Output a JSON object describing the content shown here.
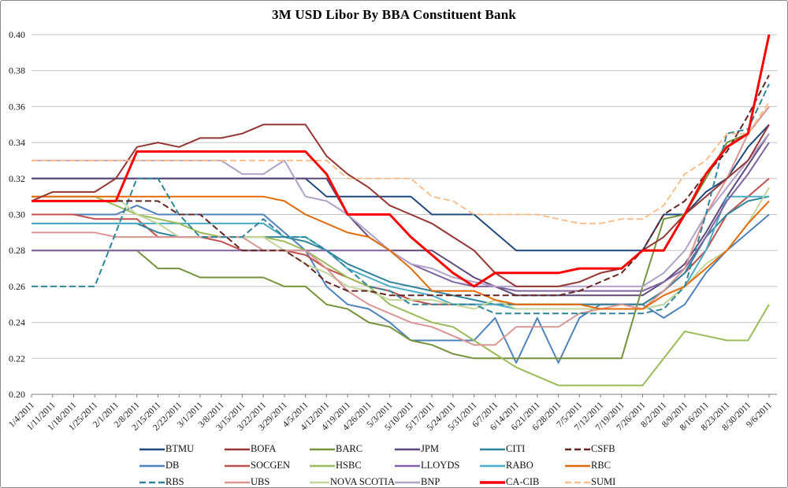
{
  "chart_data": {
    "type": "line",
    "title": "3M USD Libor By BBA Constituent Bank",
    "xlabel": "",
    "ylabel": "",
    "ylim": [
      0.2,
      0.4
    ],
    "y_tick_step": 0.02,
    "grid": true,
    "legend_position": "bottom",
    "y_tick_labels": [
      "0.20",
      "0.22",
      "0.24",
      "0.26",
      "0.28",
      "0.30",
      "0.32",
      "0.34",
      "0.36",
      "0.38",
      "0.40"
    ],
    "x_labels": [
      "1/4/2011",
      "1/11/2011",
      "1/18/2011",
      "1/25/2011",
      "2/1/2011",
      "2/8/2011",
      "2/15/2011",
      "2/22/2011",
      "3/1/2011",
      "3/8/2011",
      "3/15/2011",
      "3/22/2011",
      "3/29/2011",
      "4/5/2011",
      "4/12/2011",
      "4/19/2011",
      "4/26/2011",
      "5/3/2011",
      "5/10/2011",
      "5/17/2011",
      "5/24/2011",
      "5/31/2011",
      "6/7/2011",
      "6/14/2011",
      "6/21/2011",
      "6/28/2011",
      "7/5/2011",
      "7/12/2011",
      "7/19/2011",
      "7/26/2011",
      "8/2/2011",
      "8/9/2011",
      "8/16/2011",
      "8/23/2011",
      "8/30/2011",
      "9/6/2011"
    ],
    "legend_order": [
      "BTMU",
      "BOFA",
      "BARC",
      "JPM",
      "CITI",
      "CSFB",
      "DB",
      "SOCGEN",
      "HSBC",
      "LLOYDS",
      "RABO",
      "RBC",
      "RBS",
      "UBS",
      "NOVA SCOTIA",
      "BNP",
      "CA-CIB",
      "SUMI"
    ],
    "series": [
      {
        "name": "BTMU",
        "color": "#1F497D",
        "dash": false,
        "width": 2,
        "values": [
          0.32,
          0.32,
          0.32,
          0.32,
          0.32,
          0.32,
          0.32,
          0.32,
          0.32,
          0.32,
          0.32,
          0.32,
          0.32,
          0.32,
          0.31,
          0.31,
          0.31,
          0.31,
          0.31,
          0.3,
          0.3,
          0.3,
          0.29,
          0.28,
          0.28,
          0.28,
          0.28,
          0.28,
          0.28,
          0.28,
          0.3,
          0.3,
          0.3125,
          0.32,
          0.3375,
          0.35
        ]
      },
      {
        "name": "JPM",
        "color": "#5F497A",
        "dash": false,
        "width": 2,
        "values": [
          0.32,
          0.32,
          0.32,
          0.32,
          0.32,
          0.32,
          0.32,
          0.32,
          0.32,
          0.32,
          0.32,
          0.32,
          0.32,
          0.32,
          0.32,
          0.3,
          0.2875,
          0.28,
          0.28,
          0.28,
          0.2725,
          0.265,
          0.26,
          0.255,
          0.255,
          0.255,
          0.255,
          0.255,
          0.255,
          0.255,
          0.2625,
          0.2725,
          0.29,
          0.31,
          0.3275,
          0.345
        ]
      },
      {
        "name": "DB",
        "color": "#4F81BD",
        "dash": false,
        "width": 2,
        "values": [
          0.3,
          0.3,
          0.3,
          0.3,
          0.3,
          0.305,
          0.3,
          0.3,
          0.3,
          0.3,
          0.3,
          0.3,
          0.29,
          0.28,
          0.26,
          0.25,
          0.2475,
          0.24,
          0.23,
          0.23,
          0.23,
          0.23,
          0.2425,
          0.2175,
          0.2425,
          0.2175,
          0.2425,
          0.25,
          0.25,
          0.25,
          0.2425,
          0.25,
          0.2675,
          0.28,
          0.29,
          0.3
        ]
      },
      {
        "name": "SOCGEN",
        "color": "#C0504D",
        "dash": false,
        "width": 2,
        "values": [
          0.3,
          0.3,
          0.3,
          0.2975,
          0.2975,
          0.2975,
          0.2875,
          0.2875,
          0.2875,
          0.285,
          0.28,
          0.28,
          0.28,
          0.2775,
          0.27,
          0.265,
          0.26,
          0.2575,
          0.2525,
          0.25,
          0.25,
          0.25,
          0.25,
          0.25,
          0.25,
          0.25,
          0.25,
          0.25,
          0.25,
          0.25,
          0.2575,
          0.2675,
          0.28,
          0.3,
          0.31,
          0.32
        ]
      },
      {
        "name": "CITI",
        "color": "#31849B",
        "dash": false,
        "width": 2,
        "values": [
          0.295,
          0.295,
          0.295,
          0.295,
          0.295,
          0.295,
          0.29,
          0.2875,
          0.2875,
          0.2875,
          0.2875,
          0.2875,
          0.2875,
          0.285,
          0.28,
          0.2725,
          0.2675,
          0.2625,
          0.26,
          0.2575,
          0.255,
          0.2525,
          0.25,
          0.25,
          0.25,
          0.25,
          0.25,
          0.25,
          0.25,
          0.25,
          0.2575,
          0.2675,
          0.2875,
          0.3,
          0.3075,
          0.31
        ]
      },
      {
        "name": "RABO",
        "color": "#4BACC6",
        "dash": false,
        "width": 2,
        "values": [
          0.295,
          0.295,
          0.295,
          0.295,
          0.295,
          0.295,
          0.295,
          0.295,
          0.295,
          0.295,
          0.295,
          0.295,
          0.2875,
          0.2875,
          0.28,
          0.27,
          0.265,
          0.26,
          0.2575,
          0.255,
          0.25,
          0.25,
          0.25,
          0.2475,
          0.2475,
          0.2475,
          0.2475,
          0.2475,
          0.2475,
          0.2475,
          0.25,
          0.26,
          0.28,
          0.31,
          0.31,
          0.31
        ]
      },
      {
        "name": "BARC",
        "color": "#76923C",
        "dash": false,
        "width": 2,
        "values": [
          0.28,
          0.28,
          0.28,
          0.28,
          0.28,
          0.28,
          0.27,
          0.27,
          0.265,
          0.265,
          0.265,
          0.265,
          0.26,
          0.26,
          0.25,
          0.2475,
          0.24,
          0.2375,
          0.23,
          0.2275,
          0.2225,
          0.22,
          0.22,
          0.22,
          0.22,
          0.22,
          0.22,
          0.22,
          0.22,
          0.26,
          0.2975,
          0.3,
          0.32,
          0.34,
          0.345,
          0.36
        ]
      },
      {
        "name": "HSBC",
        "color": "#9BBB59",
        "dash": false,
        "width": 2,
        "values": [
          0.31,
          0.31,
          0.31,
          0.31,
          0.305,
          0.3,
          0.2975,
          0.295,
          0.29,
          0.2875,
          0.2875,
          0.2875,
          0.285,
          0.28,
          0.2725,
          0.265,
          0.26,
          0.25,
          0.245,
          0.24,
          0.2375,
          0.23,
          0.2225,
          0.215,
          0.21,
          0.205,
          0.205,
          0.205,
          0.205,
          0.205,
          0.22,
          0.235,
          0.2325,
          0.23,
          0.23,
          0.25
        ]
      },
      {
        "name": "NOVA SCOTIA",
        "color": "#C3D69B",
        "dash": false,
        "width": 2,
        "values": [
          0.31,
          0.31,
          0.31,
          0.31,
          0.31,
          0.3,
          0.295,
          0.2875,
          0.2875,
          0.2875,
          0.2875,
          0.2875,
          0.28,
          0.2725,
          0.2675,
          0.26,
          0.2575,
          0.2525,
          0.2525,
          0.2525,
          0.25,
          0.2475,
          0.2525,
          0.2475,
          0.2475,
          0.2475,
          0.2475,
          0.2475,
          0.2475,
          0.2475,
          0.25,
          0.26,
          0.2725,
          0.28,
          0.295,
          0.315
        ]
      },
      {
        "name": "LLOYDS",
        "color": "#8064A2",
        "dash": false,
        "width": 2,
        "values": [
          0.28,
          0.28,
          0.28,
          0.28,
          0.28,
          0.28,
          0.28,
          0.28,
          0.28,
          0.28,
          0.28,
          0.28,
          0.28,
          0.28,
          0.28,
          0.28,
          0.28,
          0.28,
          0.2725,
          0.2675,
          0.2625,
          0.26,
          0.26,
          0.2575,
          0.2575,
          0.2575,
          0.2575,
          0.2575,
          0.2575,
          0.2575,
          0.2625,
          0.27,
          0.2875,
          0.3075,
          0.3225,
          0.34
        ]
      },
      {
        "name": "BNP",
        "color": "#B2A2C7",
        "dash": false,
        "width": 2,
        "values": [
          0.33,
          0.33,
          0.33,
          0.33,
          0.33,
          0.33,
          0.33,
          0.33,
          0.33,
          0.33,
          0.3225,
          0.3225,
          0.33,
          0.31,
          0.3075,
          0.3,
          0.29,
          0.28,
          0.2725,
          0.27,
          0.265,
          0.2625,
          0.26,
          0.26,
          0.26,
          0.26,
          0.26,
          0.26,
          0.26,
          0.26,
          0.2675,
          0.28,
          0.3,
          0.315,
          0.33,
          0.345
        ]
      },
      {
        "name": "UBS",
        "color": "#D99694",
        "dash": false,
        "width": 2,
        "values": [
          0.29,
          0.29,
          0.29,
          0.29,
          0.2875,
          0.2875,
          0.2875,
          0.2875,
          0.2875,
          0.2875,
          0.2875,
          0.28,
          0.28,
          0.28,
          0.27,
          0.2575,
          0.25,
          0.245,
          0.24,
          0.2375,
          0.2325,
          0.2275,
          0.2275,
          0.2375,
          0.2375,
          0.2375,
          0.245,
          0.2475,
          0.25,
          0.2475,
          0.2575,
          0.27,
          0.3,
          0.32,
          0.345,
          0.36
        ]
      },
      {
        "name": "RBC",
        "color": "#E36C0A",
        "dash": false,
        "width": 2,
        "values": [
          0.31,
          0.31,
          0.31,
          0.31,
          0.31,
          0.31,
          0.31,
          0.31,
          0.31,
          0.31,
          0.31,
          0.31,
          0.3075,
          0.3,
          0.295,
          0.29,
          0.2875,
          0.28,
          0.27,
          0.2575,
          0.2575,
          0.2575,
          0.2525,
          0.25,
          0.25,
          0.25,
          0.25,
          0.2475,
          0.2475,
          0.2475,
          0.255,
          0.26,
          0.27,
          0.28,
          0.295,
          0.3075
        ]
      },
      {
        "name": "BOFA",
        "color": "#943634",
        "dash": false,
        "width": 2,
        "values": [
          0.3075,
          0.3125,
          0.3125,
          0.3125,
          0.32,
          0.3375,
          0.34,
          0.3375,
          0.3425,
          0.3425,
          0.345,
          0.35,
          0.35,
          0.35,
          0.3325,
          0.3225,
          0.315,
          0.305,
          0.3,
          0.295,
          0.2875,
          0.28,
          0.2675,
          0.26,
          0.26,
          0.26,
          0.2625,
          0.2675,
          0.27,
          0.28,
          0.2875,
          0.3,
          0.31,
          0.32,
          0.33,
          0.35
        ]
      },
      {
        "name": "RBS",
        "color": "#31859B",
        "dash": true,
        "width": 2,
        "values": [
          0.26,
          0.26,
          0.26,
          0.26,
          0.29,
          0.32,
          0.32,
          0.3,
          0.2875,
          0.2875,
          0.2875,
          0.2975,
          0.2875,
          0.2875,
          0.28,
          0.27,
          0.26,
          0.2575,
          0.25,
          0.25,
          0.25,
          0.25,
          0.245,
          0.245,
          0.245,
          0.245,
          0.245,
          0.245,
          0.245,
          0.245,
          0.2475,
          0.26,
          0.3,
          0.345,
          0.3475,
          0.3725
        ]
      },
      {
        "name": "CSFB",
        "color": "#632423",
        "dash": true,
        "width": 2,
        "values": [
          0.3075,
          0.3075,
          0.3075,
          0.3075,
          0.3075,
          0.3075,
          0.3075,
          0.3,
          0.3,
          0.29,
          0.28,
          0.28,
          0.28,
          0.2725,
          0.2625,
          0.2575,
          0.2575,
          0.255,
          0.255,
          0.255,
          0.255,
          0.255,
          0.255,
          0.255,
          0.255,
          0.255,
          0.2575,
          0.2625,
          0.2675,
          0.28,
          0.3,
          0.3075,
          0.3225,
          0.335,
          0.355,
          0.3775
        ]
      },
      {
        "name": "SUMI",
        "color": "#FABF8F",
        "dash": true,
        "width": 2,
        "values": [
          0.33,
          0.33,
          0.33,
          0.33,
          0.33,
          0.33,
          0.33,
          0.33,
          0.33,
          0.33,
          0.33,
          0.33,
          0.33,
          0.33,
          0.33,
          0.32,
          0.32,
          0.32,
          0.32,
          0.31,
          0.3075,
          0.3,
          0.3,
          0.3,
          0.3,
          0.2975,
          0.295,
          0.295,
          0.2975,
          0.2975,
          0.305,
          0.3225,
          0.33,
          0.345,
          0.345,
          0.3625
        ]
      },
      {
        "name": "CA-CIB",
        "color": "#FF0000",
        "dash": false,
        "width": 3,
        "values": [
          0.3075,
          0.3075,
          0.3075,
          0.3075,
          0.3075,
          0.335,
          0.335,
          0.335,
          0.335,
          0.335,
          0.335,
          0.335,
          0.335,
          0.335,
          0.3225,
          0.3,
          0.3,
          0.3,
          0.2875,
          0.2775,
          0.2675,
          0.26,
          0.2675,
          0.2675,
          0.2675,
          0.2675,
          0.27,
          0.27,
          0.27,
          0.28,
          0.28,
          0.3,
          0.3225,
          0.3375,
          0.345,
          0.4
        ]
      }
    ],
    "colors": {
      "gridline": "#C3C3C3",
      "axis_line": "#7F7F7F",
      "tick_mark": "#7F7F7F",
      "background": "#FFFFFF"
    }
  }
}
